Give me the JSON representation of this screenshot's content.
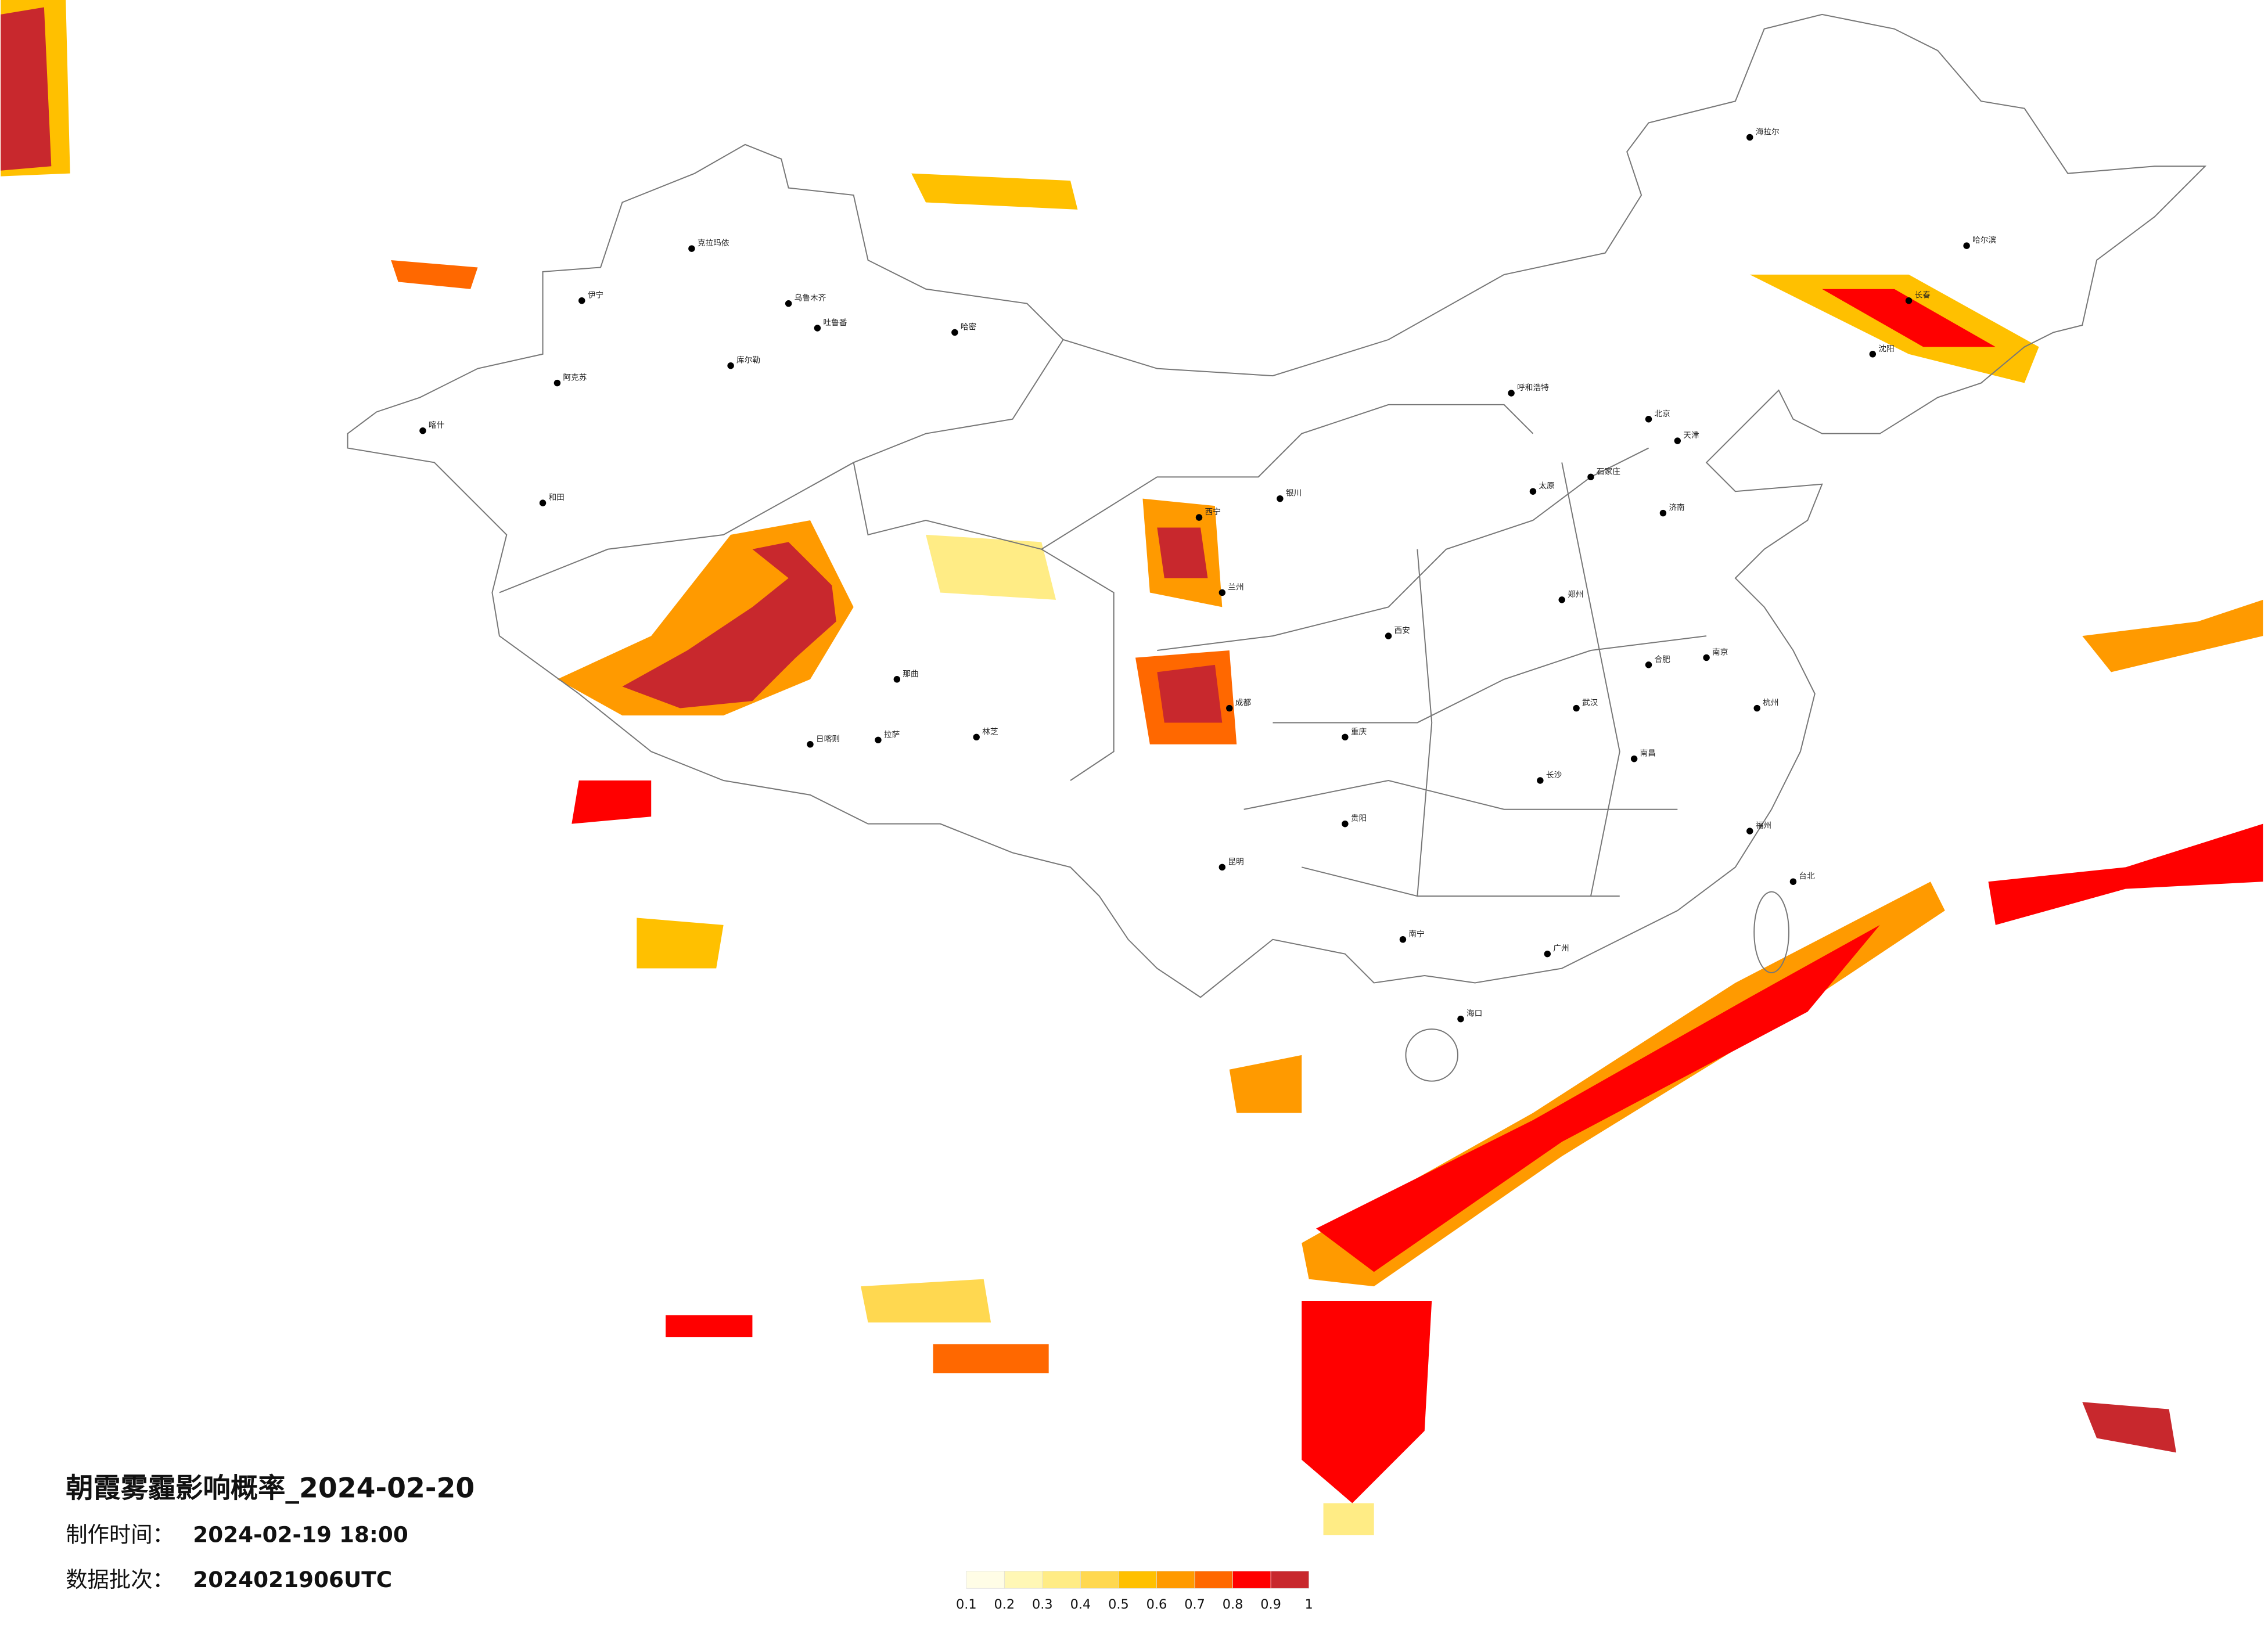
{
  "title": "朝霞雾霾影响概率_2024-02-20",
  "info": [
    {
      "label": "制作时间：",
      "value": "2024-02-19 18:00"
    },
    {
      "label": "数据批次：",
      "value": "2024021906UTC"
    }
  ],
  "legend": {
    "ticks": [
      0.1,
      0.2,
      0.3,
      0.4,
      0.5,
      0.6,
      0.7,
      0.8,
      0.9,
      1
    ],
    "colors": [
      "#fffde6",
      "#fff7b5",
      "#ffec85",
      "#ffd850",
      "#ffc000",
      "#ff9a00",
      "#ff6800",
      "#ff0000",
      "#c8282d"
    ]
  },
  "cities": [
    "克拉玛依",
    "乌鲁木齐",
    "吐鲁番",
    "哈密",
    "库尔勒",
    "阿克苏",
    "和田",
    "喀什",
    "伊宁",
    "拉萨",
    "日喀则",
    "那曲",
    "林芝",
    "西宁",
    "兰州",
    "银川",
    "呼和浩特",
    "北京",
    "天津",
    "石家庄",
    "太原",
    "济南",
    "郑州",
    "西安",
    "成都",
    "重庆",
    "贵阳",
    "昆明",
    "南宁",
    "广州",
    "长沙",
    "武汉",
    "南昌",
    "合肥",
    "南京",
    "杭州",
    "福州",
    "沈阳",
    "长春",
    "哈尔滨",
    "海拉尔",
    "海口",
    "台北"
  ]
}
